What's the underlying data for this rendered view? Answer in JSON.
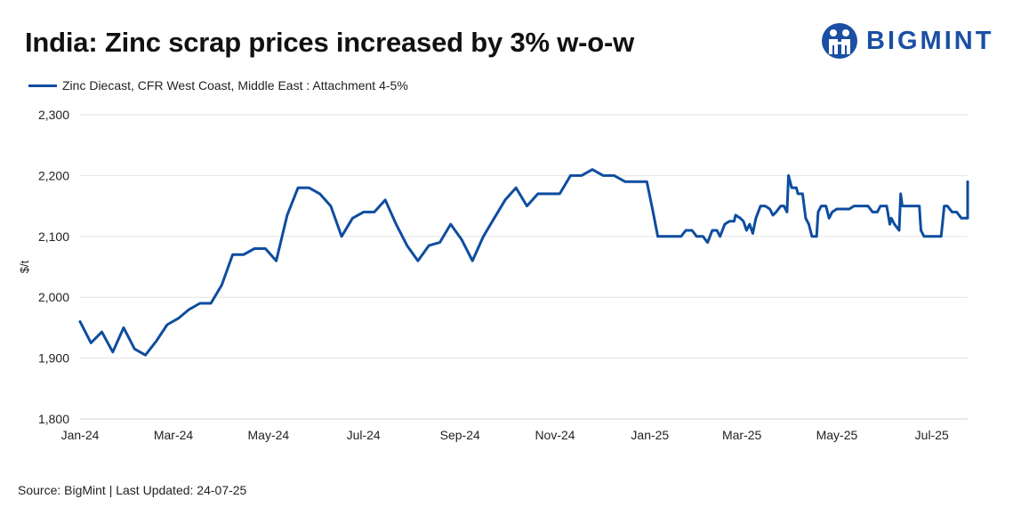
{
  "header": {
    "title": "India: Zinc scrap prices increased by 3% w-o-w",
    "brand": "BIGMINT"
  },
  "footer": {
    "source": "Source: BigMint | Last Updated: 24-07-25"
  },
  "colors": {
    "line": "#0e4d9f",
    "grid": "#e3e3e3",
    "brand": "#1a4fa3"
  },
  "chart_data": {
    "type": "line",
    "title": "India: Zinc scrap prices increased by 3% w-o-w",
    "xlabel": "",
    "ylabel": "$/t",
    "ylim": [
      1800,
      2300
    ],
    "yticks": [
      1800,
      1900,
      2000,
      2100,
      2200,
      2300
    ],
    "ytick_labels": [
      "1,800",
      "1,900",
      "2,000",
      "2,100",
      "2,200",
      "2,300"
    ],
    "xlim": [
      "2024-01-01",
      "2025-07-24"
    ],
    "xticks": [
      "2024-01-01",
      "2024-03-01",
      "2024-05-01",
      "2024-07-01",
      "2024-09-01",
      "2024-11-01",
      "2025-01-01",
      "2025-03-01",
      "2025-05-01",
      "2025-07-01"
    ],
    "xtick_labels": [
      "Jan-24",
      "Mar-24",
      "May-24",
      "Jul-24",
      "Sep-24",
      "Nov-24",
      "Jan-25",
      "Mar-25",
      "May-25",
      "Jul-25"
    ],
    "grid": "horizontal",
    "legend_position": "top-left",
    "series": [
      {
        "name": "Zinc Diecast, CFR West Coast, Middle East : Attachment 4-5%",
        "points": [
          [
            "2024-01-01",
            1960
          ],
          [
            "2024-01-08",
            1925
          ],
          [
            "2024-01-15",
            1943
          ],
          [
            "2024-01-22",
            1910
          ],
          [
            "2024-01-29",
            1950
          ],
          [
            "2024-02-05",
            1915
          ],
          [
            "2024-02-12",
            1905
          ],
          [
            "2024-02-19",
            1928
          ],
          [
            "2024-02-26",
            1955
          ],
          [
            "2024-03-04",
            1965
          ],
          [
            "2024-03-11",
            1980
          ],
          [
            "2024-03-18",
            1990
          ],
          [
            "2024-03-25",
            1990
          ],
          [
            "2024-04-01",
            2020
          ],
          [
            "2024-04-08",
            2070
          ],
          [
            "2024-04-15",
            2070
          ],
          [
            "2024-04-22",
            2080
          ],
          [
            "2024-04-29",
            2080
          ],
          [
            "2024-05-06",
            2060
          ],
          [
            "2024-05-13",
            2135
          ],
          [
            "2024-05-20",
            2180
          ],
          [
            "2024-05-27",
            2180
          ],
          [
            "2024-06-03",
            2170
          ],
          [
            "2024-06-10",
            2150
          ],
          [
            "2024-06-17",
            2100
          ],
          [
            "2024-06-24",
            2130
          ],
          [
            "2024-07-01",
            2140
          ],
          [
            "2024-07-08",
            2140
          ],
          [
            "2024-07-15",
            2160
          ],
          [
            "2024-07-22",
            2120
          ],
          [
            "2024-07-29",
            2085
          ],
          [
            "2024-08-05",
            2060
          ],
          [
            "2024-08-12",
            2085
          ],
          [
            "2024-08-19",
            2090
          ],
          [
            "2024-08-26",
            2120
          ],
          [
            "2024-09-02",
            2095
          ],
          [
            "2024-09-09",
            2060
          ],
          [
            "2024-09-16",
            2100
          ],
          [
            "2024-09-23",
            2130
          ],
          [
            "2024-09-30",
            2160
          ],
          [
            "2024-10-07",
            2180
          ],
          [
            "2024-10-14",
            2150
          ],
          [
            "2024-10-21",
            2170
          ],
          [
            "2024-10-28",
            2170
          ],
          [
            "2024-11-04",
            2170
          ],
          [
            "2024-11-11",
            2200
          ],
          [
            "2024-11-18",
            2200
          ],
          [
            "2024-11-25",
            2210
          ],
          [
            "2024-12-02",
            2200
          ],
          [
            "2024-12-09",
            2200
          ],
          [
            "2024-12-16",
            2190
          ],
          [
            "2024-12-23",
            2190
          ],
          [
            "2024-12-30",
            2190
          ],
          [
            "2025-01-03",
            2140
          ],
          [
            "2025-01-06",
            2100
          ],
          [
            "2025-01-10",
            2100
          ],
          [
            "2025-01-14",
            2100
          ],
          [
            "2025-01-17",
            2100
          ],
          [
            "2025-01-21",
            2100
          ],
          [
            "2025-01-24",
            2110
          ],
          [
            "2025-01-28",
            2110
          ],
          [
            "2025-01-31",
            2100
          ],
          [
            "2025-02-04",
            2100
          ],
          [
            "2025-02-07",
            2090
          ],
          [
            "2025-02-10",
            2110
          ],
          [
            "2025-02-13",
            2110
          ],
          [
            "2025-02-15",
            2100
          ],
          [
            "2025-02-18",
            2120
          ],
          [
            "2025-02-21",
            2125
          ],
          [
            "2025-02-24",
            2125
          ],
          [
            "2025-02-25",
            2135
          ],
          [
            "2025-02-28",
            2130
          ],
          [
            "2025-03-02",
            2125
          ],
          [
            "2025-03-04",
            2110
          ],
          [
            "2025-03-06",
            2120
          ],
          [
            "2025-03-08",
            2105
          ],
          [
            "2025-03-10",
            2130
          ],
          [
            "2025-03-13",
            2150
          ],
          [
            "2025-03-16",
            2150
          ],
          [
            "2025-03-19",
            2145
          ],
          [
            "2025-03-21",
            2135
          ],
          [
            "2025-03-23",
            2140
          ],
          [
            "2025-03-26",
            2150
          ],
          [
            "2025-03-28",
            2150
          ],
          [
            "2025-03-30",
            2140
          ],
          [
            "2025-03-31",
            2200
          ],
          [
            "2025-04-02",
            2180
          ],
          [
            "2025-04-05",
            2180
          ],
          [
            "2025-04-06",
            2170
          ],
          [
            "2025-04-09",
            2170
          ],
          [
            "2025-04-11",
            2130
          ],
          [
            "2025-04-13",
            2120
          ],
          [
            "2025-04-15",
            2100
          ],
          [
            "2025-04-18",
            2100
          ],
          [
            "2025-04-19",
            2140
          ],
          [
            "2025-04-21",
            2150
          ],
          [
            "2025-04-24",
            2150
          ],
          [
            "2025-04-26",
            2130
          ],
          [
            "2025-04-28",
            2140
          ],
          [
            "2025-05-01",
            2145
          ],
          [
            "2025-05-05",
            2145
          ],
          [
            "2025-05-09",
            2145
          ],
          [
            "2025-05-12",
            2150
          ],
          [
            "2025-05-16",
            2150
          ],
          [
            "2025-05-21",
            2150
          ],
          [
            "2025-05-24",
            2140
          ],
          [
            "2025-05-27",
            2140
          ],
          [
            "2025-05-29",
            2150
          ],
          [
            "2025-06-02",
            2150
          ],
          [
            "2025-06-04",
            2120
          ],
          [
            "2025-06-05",
            2130
          ],
          [
            "2025-06-07",
            2120
          ],
          [
            "2025-06-10",
            2110
          ],
          [
            "2025-06-11",
            2170
          ],
          [
            "2025-06-12",
            2150
          ],
          [
            "2025-06-16",
            2150
          ],
          [
            "2025-06-20",
            2150
          ],
          [
            "2025-06-23",
            2150
          ],
          [
            "2025-06-24",
            2110
          ],
          [
            "2025-06-26",
            2100
          ],
          [
            "2025-06-30",
            2100
          ],
          [
            "2025-07-03",
            2100
          ],
          [
            "2025-07-07",
            2100
          ],
          [
            "2025-07-09",
            2150
          ],
          [
            "2025-07-11",
            2150
          ],
          [
            "2025-07-14",
            2140
          ],
          [
            "2025-07-17",
            2140
          ],
          [
            "2025-07-20",
            2130
          ],
          [
            "2025-07-23",
            2130
          ],
          [
            "2025-07-25",
            2130
          ],
          [
            "2025-07-27",
            2145
          ],
          [
            "2025-07-28",
            2135
          ],
          [
            "2025-07-30",
            2135
          ],
          [
            "2025-08-01",
            2180
          ],
          [
            "2025-08-03",
            2190
          ],
          [
            "2025-08-05",
            2190
          ]
        ]
      }
    ]
  }
}
